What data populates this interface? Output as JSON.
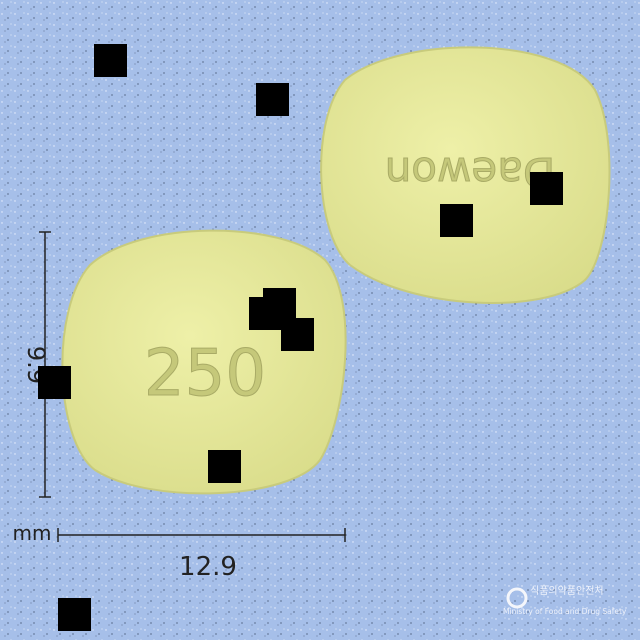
{
  "pills": [
    {
      "imprint": "250"
    },
    {
      "imprint": "Daewon"
    }
  ],
  "dimensions": {
    "height": "9.9",
    "width": "12.9",
    "unit": "mm"
  },
  "logo": {
    "korean": "식품의약품안전처",
    "english": "Ministry of Food and Drug Safety"
  }
}
